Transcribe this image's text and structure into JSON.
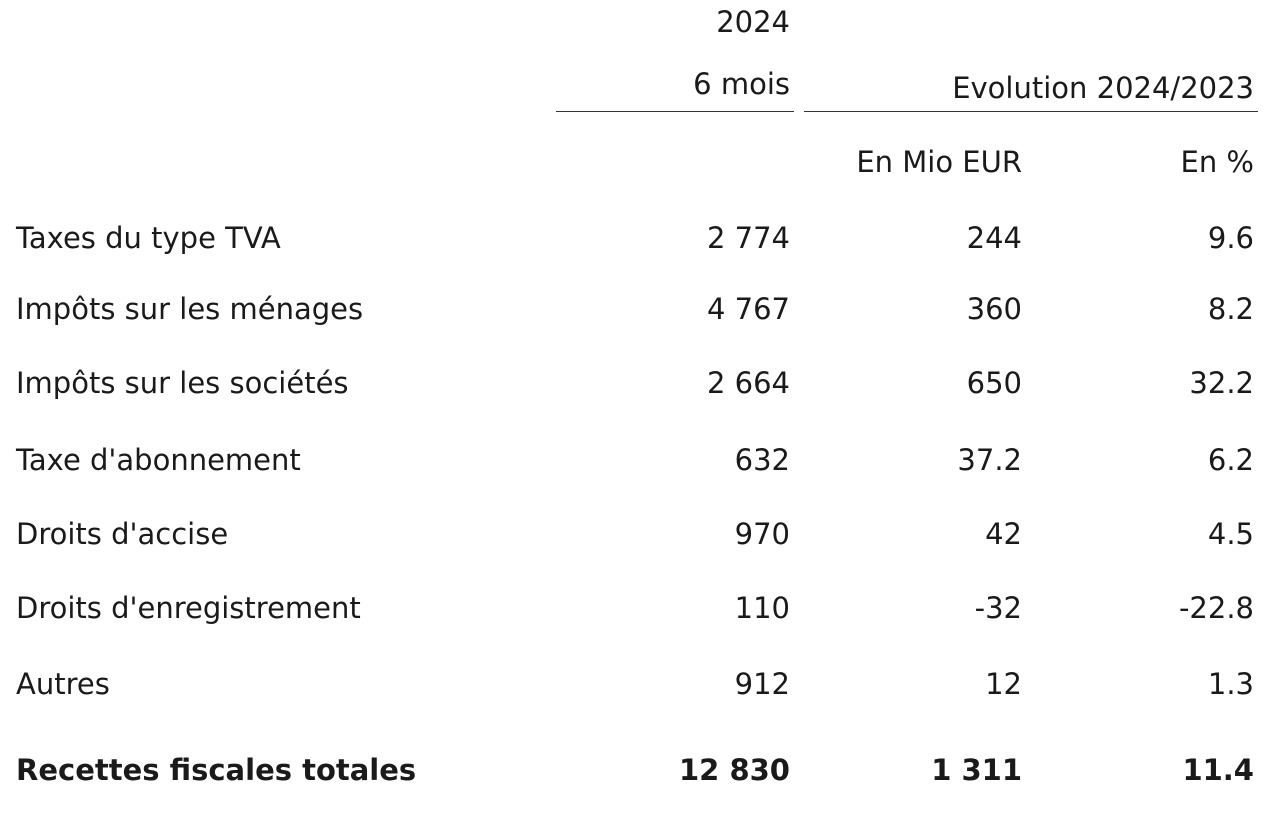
{
  "header": {
    "year": "2024",
    "period": "6 mois",
    "evolution": "Evolution 2024/2023",
    "unit_eur": "En Mio EUR",
    "unit_pct": "En %"
  },
  "rows": [
    {
      "label": "Taxes du type TVA",
      "value_2024": "2 774",
      "evo_eur": "244",
      "evo_pct": "9.6"
    },
    {
      "label": "Impôts sur les ménages",
      "value_2024": "4 767",
      "evo_eur": "360",
      "evo_pct": "8.2"
    },
    {
      "label": "Impôts sur les sociétés",
      "value_2024": "2 664",
      "evo_eur": "650",
      "evo_pct": "32.2"
    },
    {
      "label": "Taxe d'abonnement",
      "value_2024": "632",
      "evo_eur": "37.2",
      "evo_pct": "6.2"
    },
    {
      "label": "Droits d'accise",
      "value_2024": "970",
      "evo_eur": "42",
      "evo_pct": "4.5"
    },
    {
      "label": "Droits d'enregistrement",
      "value_2024": "110",
      "evo_eur": "-32",
      "evo_pct": "-22.8"
    },
    {
      "label": "Autres",
      "value_2024": "912",
      "evo_eur": "12",
      "evo_pct": "1.3"
    }
  ],
  "total": {
    "label": "Recettes fiscales totales",
    "value_2024": "12 830",
    "evo_eur": "1 311",
    "evo_pct": "11.4"
  }
}
